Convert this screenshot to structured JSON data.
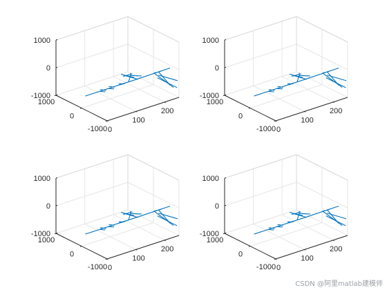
{
  "chart_data": [
    {
      "type": "line",
      "title": "",
      "xlabel": "",
      "ylabel": "",
      "zlabel": "",
      "xlim": [
        0,
        250
      ],
      "ylim": [
        -1000,
        1000
      ],
      "zlim": [
        -1000,
        1000
      ],
      "x_ticks": [
        0,
        100,
        200
      ],
      "x_tick_labels": [
        "0",
        "100",
        "200"
      ],
      "y_ticks": [
        1000,
        0,
        -1000
      ],
      "y_tick_labels": [
        "1000",
        "0",
        "-1000"
      ],
      "z_ticks": [
        1000,
        0,
        -1000
      ],
      "z_tick_labels": [
        "1000",
        "0",
        "-1000"
      ],
      "grid": true,
      "view": "3d"
    },
    {
      "type": "line",
      "title": "",
      "xlabel": "",
      "ylabel": "",
      "zlabel": "",
      "xlim": [
        0,
        250
      ],
      "ylim": [
        -1000,
        1000
      ],
      "zlim": [
        -1000,
        1000
      ],
      "x_ticks": [
        0,
        100,
        200
      ],
      "x_tick_labels": [
        "0",
        "100",
        "200"
      ],
      "y_ticks": [
        1000,
        0,
        -1000
      ],
      "y_tick_labels": [
        "1000",
        "0",
        "-1000"
      ],
      "z_ticks": [
        1000,
        0,
        -1000
      ],
      "z_tick_labels": [
        "1000",
        "0",
        "-1000"
      ],
      "grid": true,
      "view": "3d"
    },
    {
      "type": "line",
      "title": "",
      "xlabel": "",
      "ylabel": "",
      "zlabel": "",
      "xlim": [
        0,
        250
      ],
      "ylim": [
        -1000,
        1000
      ],
      "zlim": [
        -1000,
        1000
      ],
      "x_ticks": [
        0,
        100,
        200
      ],
      "x_tick_labels": [
        "0",
        "100",
        "200"
      ],
      "y_ticks": [
        1000,
        0,
        -1000
      ],
      "y_tick_labels": [
        "1000",
        "0",
        "-1000"
      ],
      "z_ticks": [
        1000,
        0,
        -1000
      ],
      "z_tick_labels": [
        "1000",
        "0",
        "-1000"
      ],
      "grid": true,
      "view": "3d"
    },
    {
      "type": "line",
      "title": "",
      "xlabel": "",
      "ylabel": "",
      "zlabel": "",
      "xlim": [
        0,
        250
      ],
      "ylim": [
        -1000,
        1000
      ],
      "zlim": [
        -1000,
        1000
      ],
      "x_ticks": [
        0,
        100,
        200
      ],
      "x_tick_labels": [
        "0",
        "100",
        "200"
      ],
      "y_ticks": [
        1000,
        0,
        -1000
      ],
      "y_tick_labels": [
        "1000",
        "0",
        "-1000"
      ],
      "z_ticks": [
        1000,
        0,
        -1000
      ],
      "z_tick_labels": [
        "1000",
        "0",
        "-1000"
      ],
      "grid": true,
      "view": "3d"
    }
  ],
  "colors": {
    "series": "#0072BD",
    "axis": "#262626",
    "grid": "#e6e6e6",
    "background": "#ffffff"
  },
  "watermark": "CSDN @阿里matlab建模师"
}
